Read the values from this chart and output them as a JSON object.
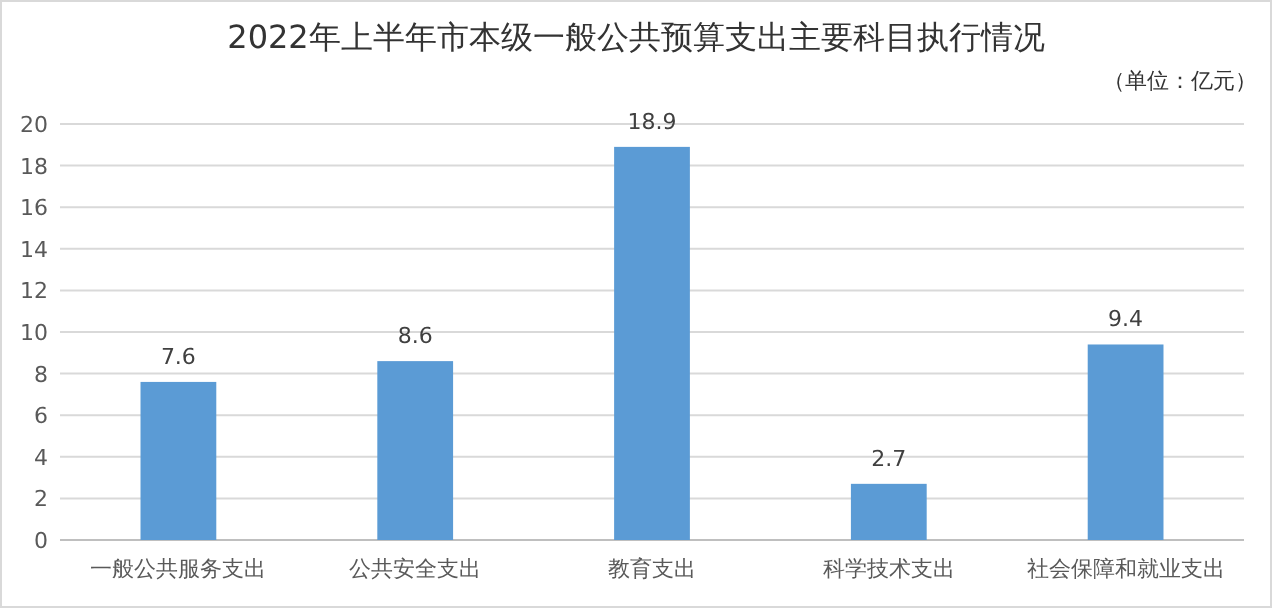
{
  "chart_data": {
    "type": "bar",
    "title": "2022年上半年市本级一般公共预算支出主要科目执行情况",
    "subtitle": "（单位：亿元）",
    "categories": [
      "一般公共服务支出",
      "公共安全支出",
      "教育支出",
      "科学技术支出",
      "社会保障和就业支出"
    ],
    "values": [
      7.6,
      8.6,
      18.9,
      2.7,
      9.4
    ],
    "color": "#5b9bd5",
    "ylim": [
      0,
      20
    ],
    "yticks": [
      0,
      2,
      4,
      6,
      8,
      10,
      12,
      14,
      16,
      18,
      20
    ],
    "grid": "y",
    "data_labels": true
  }
}
